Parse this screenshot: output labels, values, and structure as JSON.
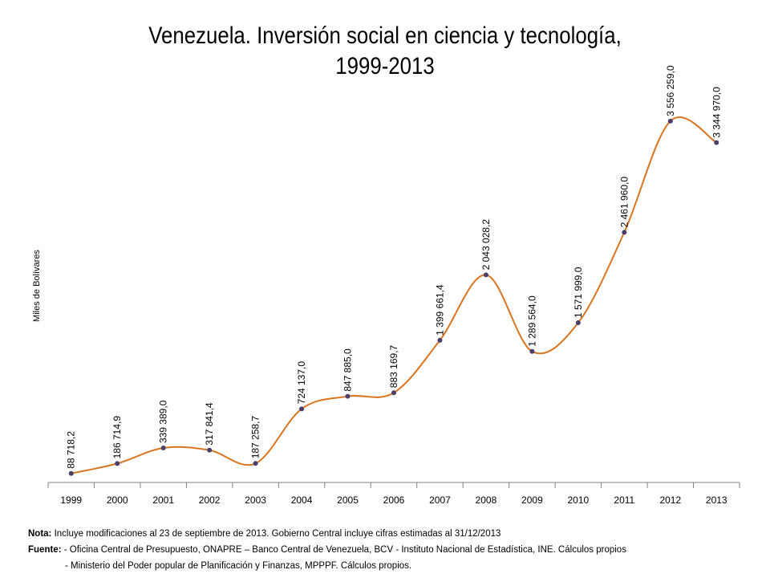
{
  "title_line1": "Venezuela. Inversión social en ciencia y tecnología,",
  "title_line2": "1999-2013",
  "notes": {
    "nota_label": "Nota:",
    "nota_text": "Incluye modificaciones al 23 de septiembre de 2013. Gobierno Central incluye cifras estimadas al 31/12/2013",
    "fuente_label": "Fuente:",
    "fuente_text1": "- Oficina Central de Presupuesto, ONAPRE – Banco Central de Venezuela, BCV  - Instituto Nacional de Estadística, INE. Cálculos propios",
    "fuente_text2": "- Ministerio del Poder popular de Planificación y Finanzas, MPPPF. Cálculos propios."
  },
  "colors": {
    "line": "#D9751E",
    "marker": "#4A3F6B",
    "axis": "#808080"
  },
  "chart_data": {
    "type": "line",
    "title": "Venezuela. Inversión social en ciencia y tecnología, 1999-2013",
    "xlabel": "",
    "ylabel": "Miles de Bolívares",
    "categories": [
      "1999",
      "2000",
      "2001",
      "2002",
      "2003",
      "2004",
      "2005",
      "2006",
      "2007",
      "2008",
      "2009",
      "2010",
      "2011",
      "2012",
      "2013"
    ],
    "values": [
      88718.2,
      186714.9,
      339389.0,
      317841.4,
      187258.7,
      724137.0,
      847885.0,
      883169.7,
      1399661.4,
      2043028.2,
      1289564.0,
      1571999.0,
      2461960.0,
      3556259.0,
      3344970.0
    ],
    "data_labels": [
      "88 718,2",
      "186 714,9",
      "339 389,0",
      "317 841,4",
      "187 258,7",
      "724 137,0",
      "847 885,0",
      "883 169,7",
      "1 399 661,4",
      "2 043 028,2",
      "1 289 564,0",
      "1 571 999,0",
      "2 461 960,0",
      "3 556 259,0",
      "3 344 970,0"
    ],
    "ylim": [
      0,
      3800000
    ],
    "smooth": true,
    "grid": false,
    "legend": "none"
  }
}
